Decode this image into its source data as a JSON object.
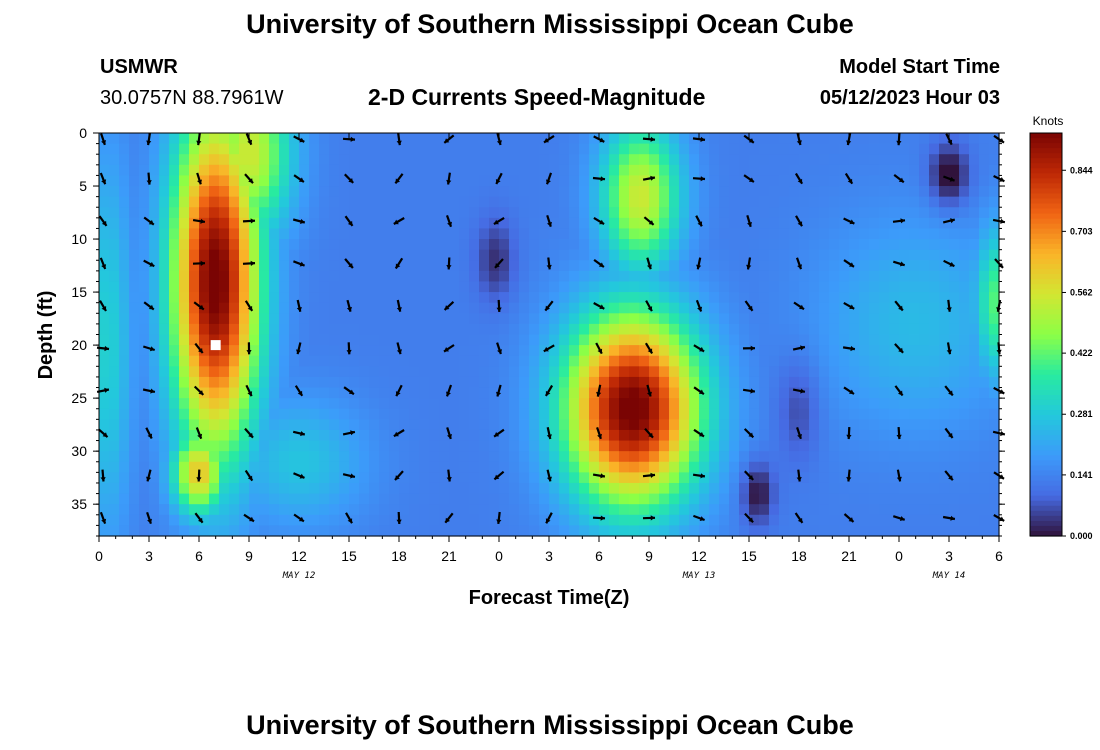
{
  "header": {
    "title": "University of Southern Mississippi Ocean Cube",
    "station": "USMWR",
    "coords": "30.0757N  88.7961W",
    "subtitle": "2-D Currents Speed-Magnitude",
    "model_label": "Model Start Time",
    "model_time": "05/12/2023 Hour 03"
  },
  "footer": {
    "title": "University of Southern Mississippi Ocean Cube"
  },
  "colors": {
    "low": "#30104a",
    "mid": "#3ea0f0",
    "high": "#7a0403"
  },
  "chart_data": {
    "type": "heatmap",
    "title": "2-D Currents Speed-Magnitude",
    "xlabel": "Forecast Time(Z)",
    "ylabel": "Depth (ft)",
    "x_ticks": [
      "0",
      "3",
      "6",
      "9",
      "12",
      "15",
      "18",
      "21",
      "0",
      "3",
      "6",
      "9",
      "12",
      "15",
      "18",
      "21",
      "0",
      "3",
      "6"
    ],
    "x_range_hours": [
      0,
      54
    ],
    "y_ticks": [
      "0",
      "5",
      "10",
      "15",
      "20",
      "25",
      "30",
      "35"
    ],
    "y_range": [
      0,
      38
    ],
    "date_labels": [
      {
        "text": "MAY 12",
        "hour": 12
      },
      {
        "text": "MAY 13",
        "hour": 36
      },
      {
        "text": "MAY 14",
        "hour": 51
      }
    ],
    "colorbar": {
      "title": "Knots",
      "ticks": [
        "0.844",
        "0.703",
        "0.562",
        "0.422",
        "0.281",
        "0.141",
        "0.000"
      ],
      "range": [
        0,
        0.93
      ]
    },
    "units": "knots",
    "speed_blobs": [
      {
        "hour": 7,
        "depth": 14,
        "peak": 0.95,
        "spread_h": 2.6,
        "spread_d": 16
      },
      {
        "hour": 6,
        "depth": 32,
        "peak": 0.62,
        "spread_h": 1.6,
        "spread_d": 4
      },
      {
        "hour": 9,
        "depth": 2,
        "peak": 0.55,
        "spread_h": 2.5,
        "spread_d": 8
      },
      {
        "hour": 32,
        "depth": 26,
        "peak": 0.95,
        "spread_h": 4.0,
        "spread_d": 9
      },
      {
        "hour": 32.5,
        "depth": 6,
        "peak": 0.55,
        "spread_h": 2.4,
        "spread_d": 7
      },
      {
        "hour": 54,
        "depth": 16,
        "peak": 0.42,
        "spread_h": 1.5,
        "spread_d": 7
      },
      {
        "hour": 49,
        "depth": 18,
        "peak": 0.25,
        "spread_h": 6,
        "spread_d": 10
      },
      {
        "hour": 12,
        "depth": 31,
        "peak": 0.27,
        "spread_h": 4,
        "spread_d": 6
      },
      {
        "hour": 0.5,
        "depth": 20,
        "peak": 0.3,
        "spread_h": 1.5,
        "spread_d": 18
      }
    ],
    "calm_spots": [
      {
        "hour": 51,
        "depth": 4,
        "strength": 0.16,
        "spread_h": 1.2,
        "spread_d": 3
      },
      {
        "hour": 23.8,
        "depth": 12,
        "strength": 0.1,
        "spread_h": 1.2,
        "spread_d": 4
      },
      {
        "hour": 39.5,
        "depth": 34,
        "strength": 0.14,
        "spread_h": 1.0,
        "spread_d": 3
      },
      {
        "hour": 42,
        "depth": 26,
        "strength": 0.08,
        "spread_h": 1.3,
        "spread_d": 5
      }
    ],
    "base_speed": 0.13,
    "max_marker": {
      "hour": 7,
      "depth": 20
    }
  }
}
